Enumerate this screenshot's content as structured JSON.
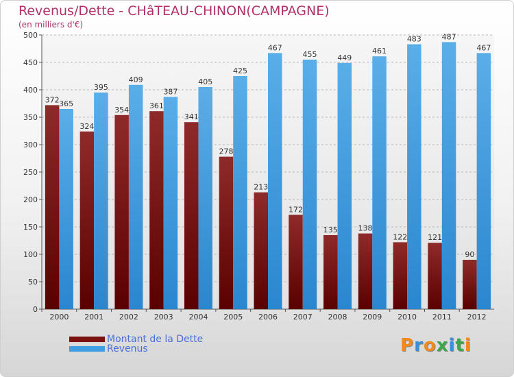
{
  "title": "Revenus/Dette - CHâTEAU-CHINON(CAMPAGNE)",
  "subtitle": "(en milliers d'€)",
  "chart_data": {
    "type": "bar",
    "categories": [
      "2000",
      "2001",
      "2002",
      "2003",
      "2004",
      "2005",
      "2006",
      "2007",
      "2008",
      "2009",
      "2010",
      "2011",
      "2012"
    ],
    "series": [
      {
        "name": "Montant de la Dette",
        "color": "#7a1212",
        "values": [
          372,
          324,
          354,
          361,
          341,
          278,
          213,
          172,
          135,
          138,
          122,
          121,
          90
        ]
      },
      {
        "name": "Revenus",
        "color": "#3f9fe0",
        "values": [
          365,
          395,
          409,
          387,
          405,
          425,
          467,
          455,
          449,
          461,
          483,
          487,
          467
        ]
      }
    ],
    "ylim": [
      0,
      500
    ],
    "yticks": [
      0,
      50,
      100,
      150,
      200,
      250,
      300,
      350,
      400,
      450,
      500
    ],
    "grid": true,
    "legend": "bottom-left"
  },
  "legend": {
    "items": [
      {
        "label": "Montant de la Dette",
        "color": "#7a1212"
      },
      {
        "label": "Revenus",
        "color": "#3f9fe0"
      }
    ]
  },
  "logo": {
    "text": "Proxiti",
    "colors": [
      "#f08a1c",
      "#3a8fd8",
      "#f08a1c",
      "#3aa84a",
      "#3a8fd8",
      "#3aa84a",
      "#f08a1c"
    ]
  }
}
